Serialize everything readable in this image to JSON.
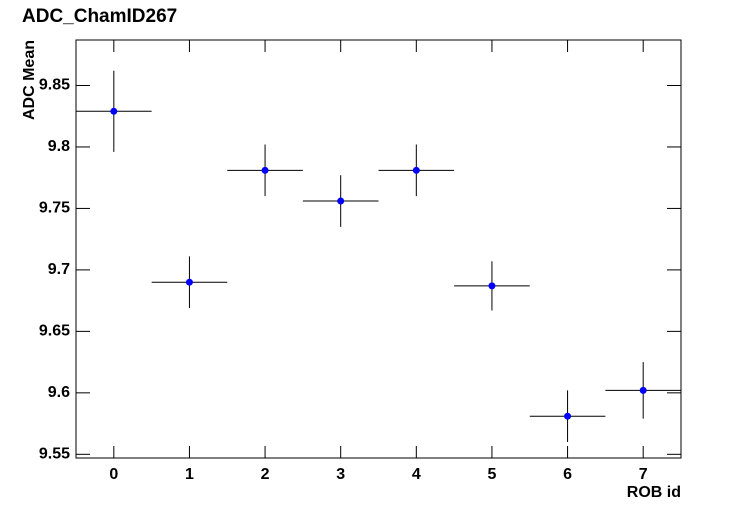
{
  "chart_data": {
    "type": "scatter",
    "title": "ADC_ChamID267",
    "x_label": "ROB id",
    "y_label": "ADC Mean",
    "x": [
      0,
      1,
      2,
      3,
      4,
      5,
      6,
      7
    ],
    "values": [
      9.829,
      9.69,
      9.781,
      9.756,
      9.781,
      9.687,
      9.581,
      9.602
    ],
    "errors": [
      0.033,
      0.021,
      0.021,
      0.021,
      0.021,
      0.02,
      0.021,
      0.023
    ],
    "xerrors": [
      0.5,
      0.5,
      0.5,
      0.5,
      0.5,
      0.5,
      0.5,
      0.5
    ],
    "color": "#0000ff",
    "xlim": [
      -0.5,
      7.5
    ],
    "xticks": [
      0,
      1,
      2,
      3,
      4,
      5,
      6,
      7
    ],
    "ylim": [
      9.547,
      9.887
    ],
    "yticks": [
      9.55,
      9.6,
      9.65,
      9.7,
      9.75,
      9.8,
      9.85
    ]
  }
}
